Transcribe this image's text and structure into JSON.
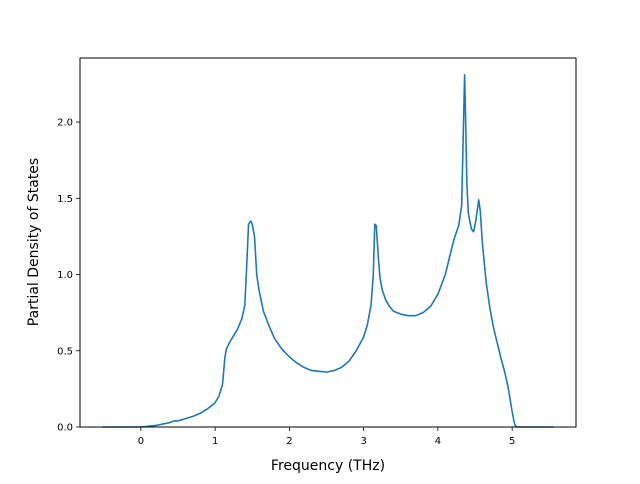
{
  "chart_data": {
    "type": "line",
    "title": "",
    "xlabel": "Frequency (THz)",
    "ylabel": "Partial Density of States",
    "xlim": [
      -0.82,
      5.86
    ],
    "ylim": [
      0.0,
      2.42
    ],
    "xticks": [
      0,
      1,
      2,
      3,
      4,
      5
    ],
    "yticks": [
      0.0,
      0.5,
      1.0,
      1.5,
      2.0
    ],
    "xtick_labels": [
      "0",
      "1",
      "2",
      "3",
      "4",
      "5"
    ],
    "ytick_labels": [
      "0.0",
      "0.5",
      "1.0",
      "1.5",
      "2.0"
    ],
    "grid": false,
    "legend": "none",
    "series": [
      {
        "color": "#1f77b4",
        "x": [
          -0.52,
          -0.3,
          0.0,
          0.1,
          0.2,
          0.3,
          0.4,
          0.45,
          0.5,
          0.6,
          0.7,
          0.8,
          0.9,
          1.0,
          1.05,
          1.1,
          1.13,
          1.15,
          1.2,
          1.3,
          1.36,
          1.4,
          1.42,
          1.45,
          1.48,
          1.5,
          1.53,
          1.56,
          1.59,
          1.65,
          1.72,
          1.8,
          1.9,
          2.0,
          2.1,
          2.2,
          2.3,
          2.4,
          2.5,
          2.6,
          2.7,
          2.8,
          2.9,
          3.0,
          3.05,
          3.1,
          3.13,
          3.15,
          3.17,
          3.2,
          3.22,
          3.25,
          3.3,
          3.35,
          3.4,
          3.5,
          3.6,
          3.7,
          3.8,
          3.9,
          4.0,
          4.1,
          4.15,
          4.2,
          4.23,
          4.28,
          4.32,
          4.35,
          4.36,
          4.37,
          4.39,
          4.41,
          4.45,
          4.48,
          4.51,
          4.55,
          4.57,
          4.6,
          4.65,
          4.7,
          4.75,
          4.8,
          4.85,
          4.9,
          4.95,
          5.0,
          5.02,
          5.04,
          5.07,
          5.1,
          5.2,
          5.56
        ],
        "y": [
          0.0,
          0.0,
          0.0,
          0.005,
          0.01,
          0.02,
          0.03,
          0.04,
          0.04,
          0.055,
          0.07,
          0.09,
          0.12,
          0.16,
          0.2,
          0.28,
          0.45,
          0.51,
          0.56,
          0.64,
          0.71,
          0.8,
          1.0,
          1.33,
          1.35,
          1.33,
          1.25,
          1.0,
          0.9,
          0.76,
          0.67,
          0.58,
          0.51,
          0.46,
          0.42,
          0.39,
          0.37,
          0.365,
          0.36,
          0.37,
          0.39,
          0.43,
          0.5,
          0.59,
          0.67,
          0.8,
          1.0,
          1.33,
          1.32,
          1.1,
          0.98,
          0.9,
          0.83,
          0.79,
          0.76,
          0.74,
          0.73,
          0.73,
          0.75,
          0.79,
          0.87,
          1.0,
          1.1,
          1.2,
          1.25,
          1.32,
          1.45,
          2.1,
          2.31,
          2.1,
          1.6,
          1.4,
          1.3,
          1.28,
          1.35,
          1.49,
          1.42,
          1.2,
          0.95,
          0.78,
          0.65,
          0.55,
          0.45,
          0.36,
          0.25,
          0.1,
          0.05,
          0.01,
          0.0,
          0.0,
          0.0,
          0.0
        ]
      }
    ]
  }
}
